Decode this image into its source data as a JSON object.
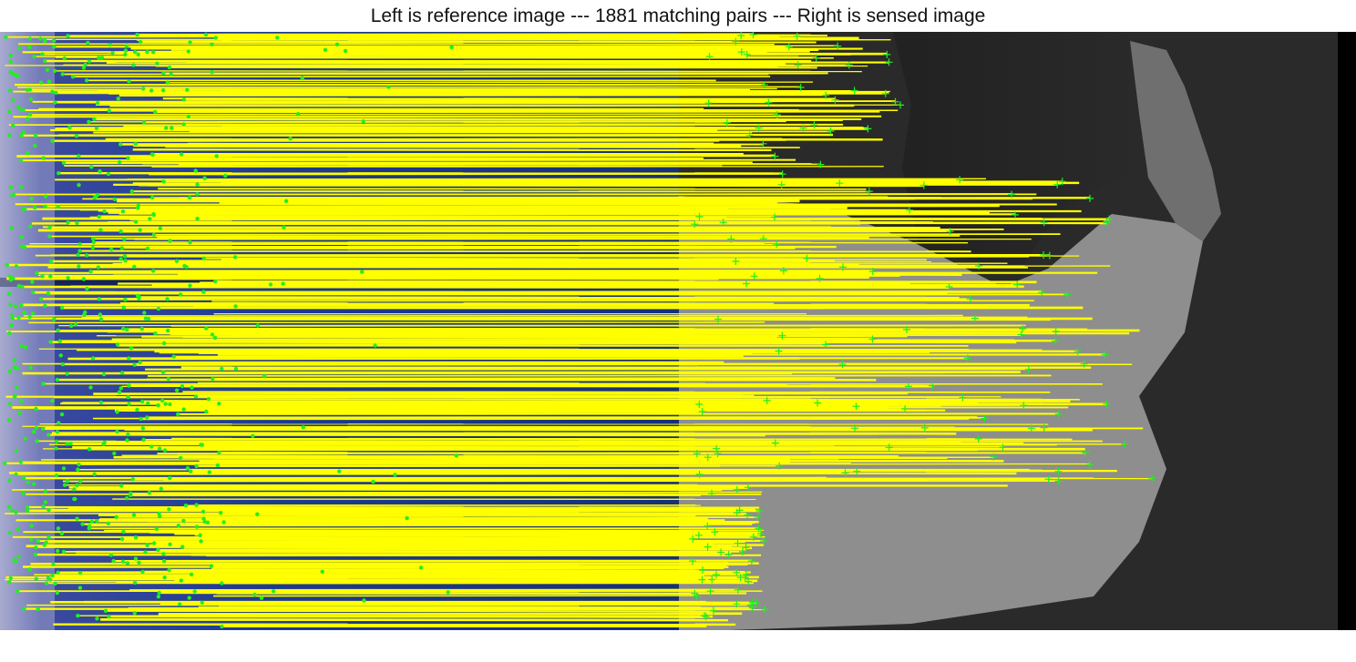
{
  "figure": {
    "title": "Left is reference image --- 1881 matching pairs --- Right is sensed image",
    "match_count": 1881
  },
  "colors": {
    "match_line": "#ffff00",
    "keypoint": "#22ee22",
    "background": "#ffffff",
    "reference_image_tint": "#1c3a8a",
    "sensed_image_gray": "#8a8a8a"
  },
  "panels": {
    "left": "reference image",
    "right": "sensed image"
  }
}
